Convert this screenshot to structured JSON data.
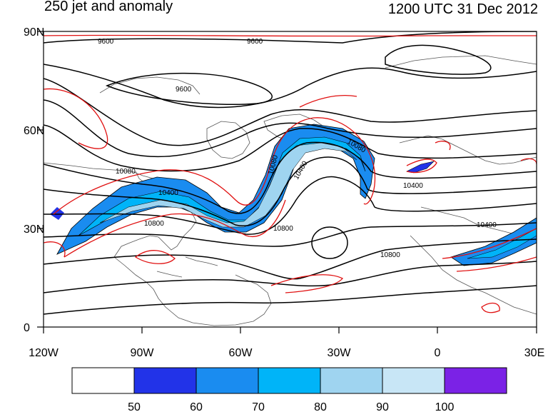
{
  "title": "250 jet and anomaly",
  "datetime": "1200 UTC 31 Dec 2012",
  "axes": {
    "lat_labels": [
      "90N",
      "60N",
      "30N",
      "0"
    ],
    "lon_labels": [
      "120W",
      "90W",
      "60W",
      "30W",
      "0",
      "30E"
    ]
  },
  "contour_labels": [
    "9600",
    "9600",
    "9600",
    "10080",
    "10080",
    "10080",
    "10400",
    "10400",
    "10400",
    "10400",
    "10800",
    "10800",
    "10800"
  ],
  "colorbar": {
    "labels": [
      "50",
      "60",
      "70",
      "80",
      "90",
      "100"
    ],
    "colors": [
      "#ffffff",
      "#2233e8",
      "#1a8cf0",
      "#00b4f8",
      "#9fd4f0",
      "#c8e6f6",
      "#7b22e6"
    ]
  },
  "colors": {
    "height_contours": "#000000",
    "anomaly_contours": "#e01010",
    "map_outlines": "#555555"
  }
}
